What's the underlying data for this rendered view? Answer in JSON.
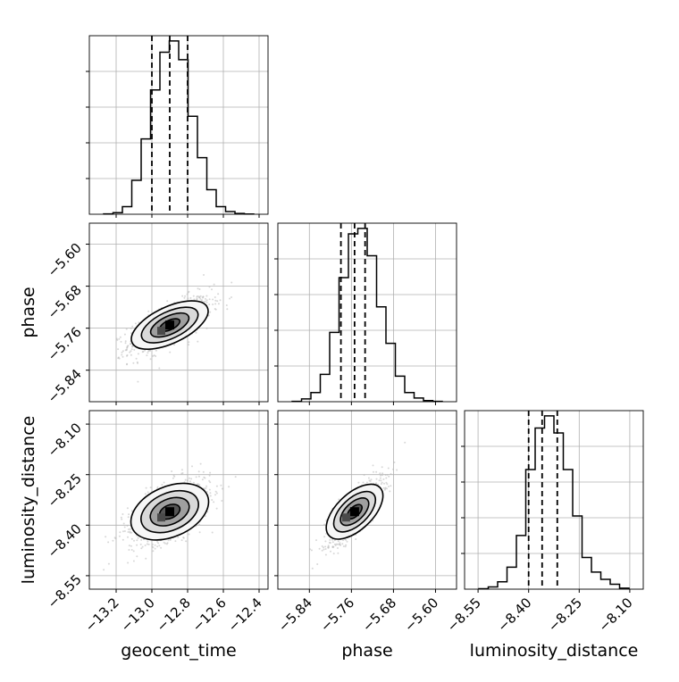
{
  "chart_data": {
    "type": "corner",
    "parameters": [
      "geocent_time",
      "phase",
      "luminosity_distance"
    ],
    "axis_labels": [
      "geocent_time",
      "phase",
      "luminosity_distance"
    ],
    "ranges": [
      [
        -13.35,
        -12.35
      ],
      [
        -5.9,
        -5.56
      ],
      [
        -8.59,
        -8.06
      ]
    ],
    "ticks": [
      {
        "values": [
          -13.2,
          -13.0,
          -12.8,
          -12.6,
          -12.4
        ],
        "labels": [
          "−13.2",
          "−13.0",
          "−12.8",
          "−12.6",
          "−12.4"
        ]
      },
      {
        "values": [
          -5.84,
          -5.76,
          -5.68,
          -5.6
        ],
        "labels": [
          "−5.84",
          "−5.76",
          "−5.68",
          "−5.60"
        ]
      },
      {
        "values": [
          -8.55,
          -8.4,
          -8.25,
          -8.1
        ],
        "labels": [
          "−8.55",
          "−8.40",
          "−8.25",
          "−8.10"
        ]
      }
    ],
    "quantiles": [
      [
        -13.0,
        -12.9,
        -12.8
      ],
      [
        -5.78,
        -5.754,
        -5.734
      ],
      [
        -8.4,
        -8.36,
        -8.315
      ]
    ],
    "histograms": [
      {
        "param": "geocent_time",
        "values": [
          0.2,
          0.8,
          4,
          18,
          40,
          66,
          86,
          92,
          82,
          52,
          30,
          13,
          4,
          1.4,
          0.4,
          0.1
        ]
      },
      {
        "param": "phase",
        "values": [
          0.2,
          1.5,
          5,
          15,
          38,
          68,
          92,
          95,
          80,
          52,
          32,
          14,
          5,
          2,
          0.6,
          0.2
        ]
      },
      {
        "param": "luminosity_distance",
        "values": [
          0.2,
          0.9,
          3,
          9,
          22,
          49,
          66,
          71,
          64,
          49,
          30,
          13,
          7,
          4,
          2,
          0.4
        ]
      }
    ],
    "correlations": {
      "phase|geocent_time": 0.7,
      "luminosity_distance|geocent_time": 0.55,
      "luminosity_distance|phase": 0.8
    },
    "contour_levels": [
      "0.118",
      "0.393",
      "0.675",
      "0.864"
    ],
    "grid": true
  },
  "colors": {
    "line": "#000000",
    "grid": "#b0b0b0",
    "points": "#b8b8b8"
  }
}
